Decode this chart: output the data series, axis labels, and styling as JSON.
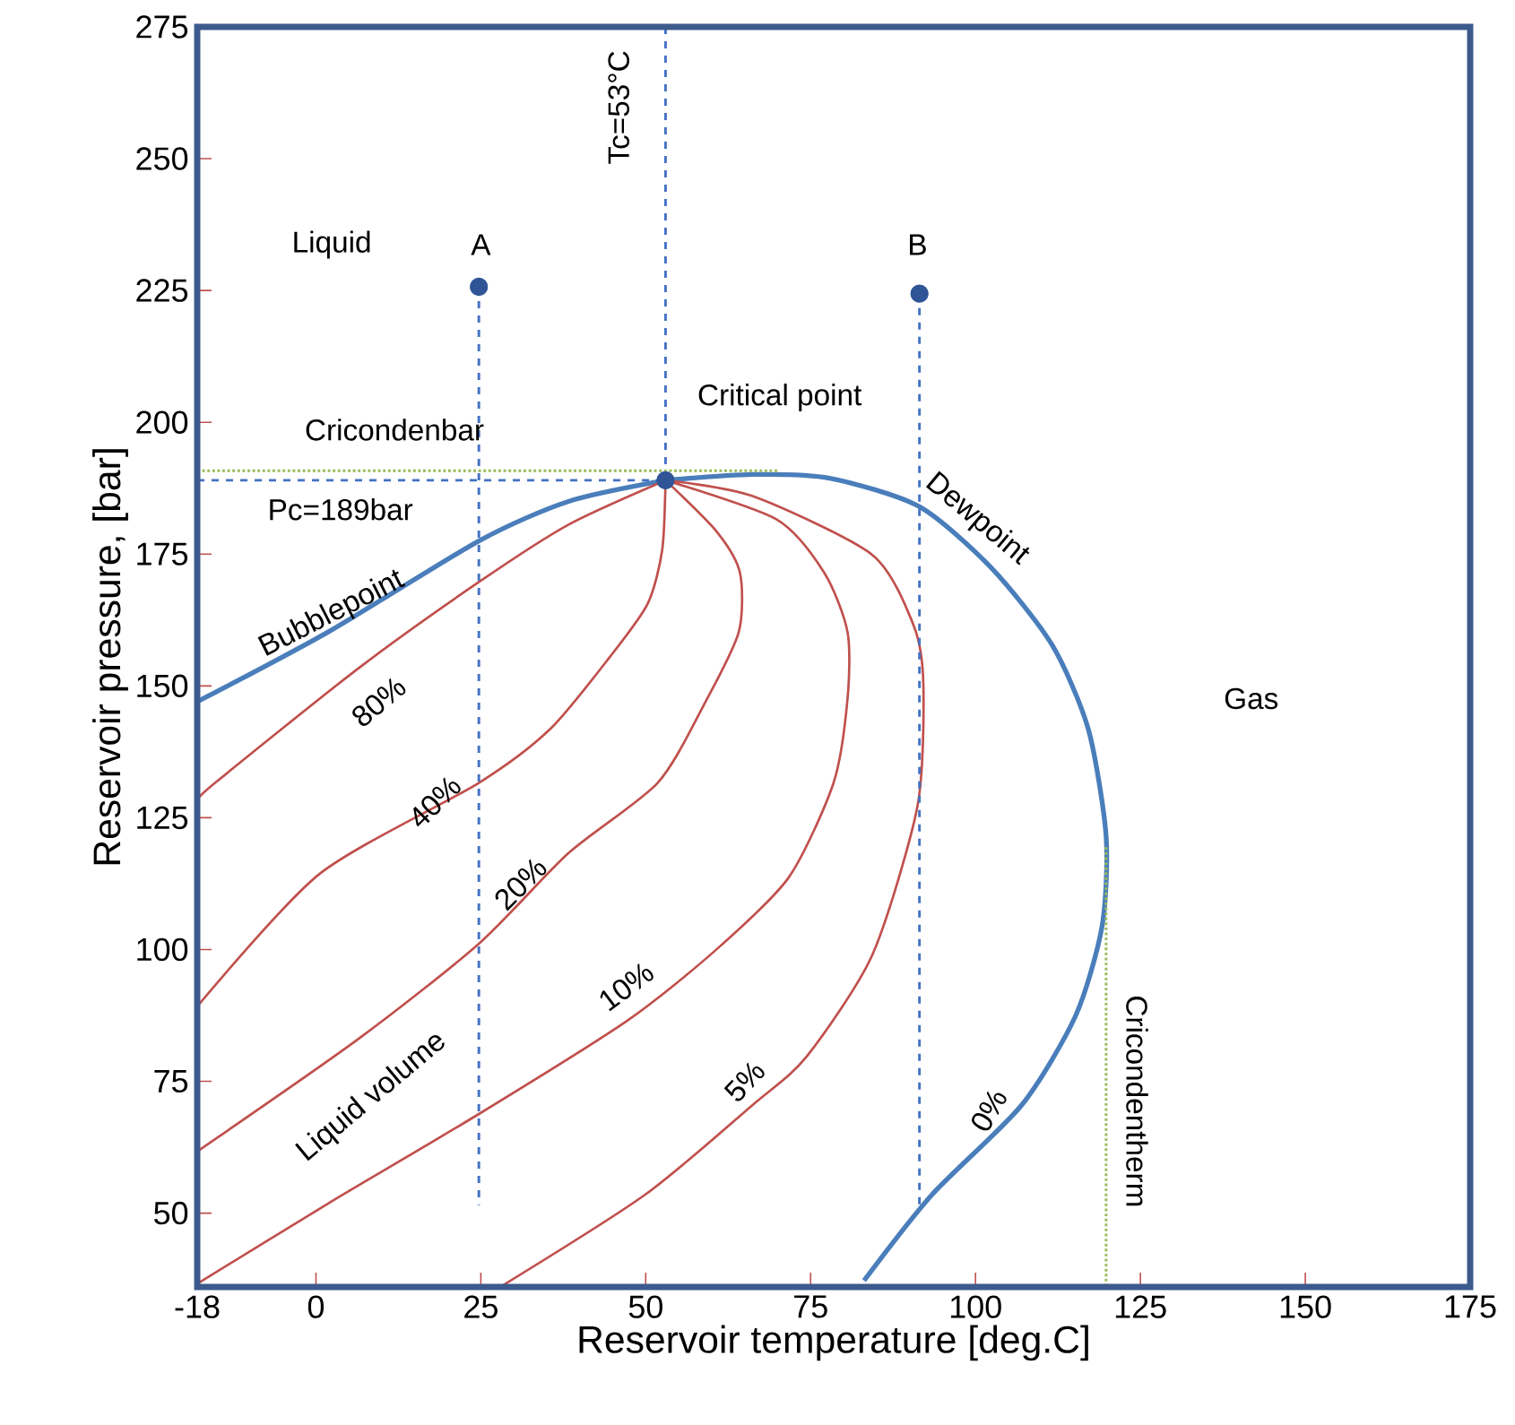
{
  "chart_data": {
    "type": "line",
    "xlabel": "Reservoir temperature  [deg.C]",
    "ylabel": "Reservoir pressure,  [bar]",
    "xlim": [
      -18,
      175
    ],
    "ylim": [
      36,
      275
    ],
    "xticks": [
      -18,
      0,
      25,
      50,
      75,
      100,
      125,
      150,
      175
    ],
    "yticks": [
      50,
      75,
      100,
      125,
      150,
      175,
      200,
      225,
      250,
      275
    ],
    "series": [
      {
        "color": "#4a7ebb",
        "line_style": "solid",
        "x": [
          -18,
          1.8,
          24.7,
          38.3,
          53
        ],
        "values": [
          147,
          160.2,
          177.5,
          185,
          189
        ]
      },
      {
        "color": "#4a7ebb",
        "line_style": "solid",
        "x": [
          53,
          66.2,
          77.9,
          91.5,
          102.4,
          111.6,
          117.1,
          119.8,
          119.2,
          115.2,
          107,
          93.4,
          83.1
        ],
        "values": [
          189,
          190.1,
          189.4,
          184,
          172.4,
          157.8,
          141.8,
          121.5,
          104.5,
          87.5,
          70.5,
          53.5,
          37.2
        ]
      },
      {
        "color": "#c0504d",
        "line_style": "solid",
        "x": [
          53,
          38.3,
          24.7,
          6.5,
          -15.3,
          -18
        ],
        "values": [
          189,
          180.6,
          169.7,
          153.4,
          131.6,
          128.3
        ]
      },
      {
        "color": "#c0504d",
        "line_style": "solid",
        "x": [
          53,
          52.5,
          50.3,
          44.5,
          35.5,
          24.7,
          0.5,
          -18
        ],
        "values": [
          189,
          175.8,
          165.6,
          155.4,
          141.8,
          131.6,
          114.3,
          89.2
        ]
      },
      {
        "color": "#c0504d",
        "line_style": "solid",
        "x": [
          53,
          60.8,
          64.3,
          64.1,
          58.9,
          51.8,
          38.3,
          24.7,
          6.5,
          -18
        ],
        "values": [
          189,
          179.2,
          171.4,
          160.2,
          146.6,
          131.6,
          118.3,
          101.1,
          83.1,
          61.7
        ]
      },
      {
        "color": "#c0504d",
        "line_style": "solid",
        "x": [
          53,
          69.8,
          77.1,
          80.6,
          80.6,
          78.5,
          71.7,
          60.8,
          47.2,
          24.7,
          1.8,
          -18
        ],
        "values": [
          189,
          181.6,
          171.4,
          160.2,
          147.6,
          131.7,
          113.7,
          100.1,
          86.5,
          68.8,
          51.8,
          36.6
        ]
      },
      {
        "color": "#c0504d",
        "line_style": "solid",
        "x": [
          53,
          66.2,
          84.4,
          90.7,
          92.1,
          91.2,
          84.4,
          74.4,
          66.2,
          49.9,
          28.2
        ],
        "values": [
          189,
          186,
          174.8,
          161.2,
          150,
          127.2,
          99.1,
          79.7,
          70.5,
          53.5,
          36.2
        ]
      },
      {
        "color": "#4472c4",
        "line_style": "dashed",
        "x": [
          53,
          53
        ],
        "values": [
          275,
          189
        ]
      },
      {
        "color": "#4472c4",
        "line_style": "dashed",
        "x": [
          -18,
          53
        ],
        "values": [
          189,
          189
        ]
      },
      {
        "color": "#9bbb59",
        "line_style": "dotted",
        "x": [
          -18,
          70
        ],
        "values": [
          190.8,
          190.8
        ]
      },
      {
        "color": "#9bbb59",
        "line_style": "dotted",
        "x": [
          119.8,
          119.8
        ],
        "values": [
          119.4,
          36
        ]
      },
      {
        "color": "#4472c4",
        "line_style": "dashed",
        "x": [
          24.7,
          24.7
        ],
        "values": [
          225.7,
          51.5
        ]
      },
      {
        "color": "#4472c4",
        "line_style": "dashed",
        "x": [
          91.5,
          91.5
        ],
        "values": [
          224.4,
          51.5
        ]
      },
      {
        "type": "scatter",
        "color": "#2f5597",
        "marker": "circle",
        "x": [
          24.7,
          91.5
        ],
        "values": [
          225.7,
          224.4
        ]
      },
      {
        "type": "scatter",
        "color": "#2f5597",
        "marker": "circle",
        "x": [
          53
        ],
        "values": [
          189
        ]
      }
    ],
    "annotations": [
      "Liquid",
      "A",
      "B",
      "Tc=53°C",
      "Critical point",
      "Cricondenbar",
      "Pc=189bar",
      "Bubblepoint",
      "Dewpoint",
      "Gas",
      "80%",
      "40%",
      "20%",
      "10%",
      "5%",
      "0%",
      "Liquid volume",
      "Cricondentherm"
    ]
  }
}
